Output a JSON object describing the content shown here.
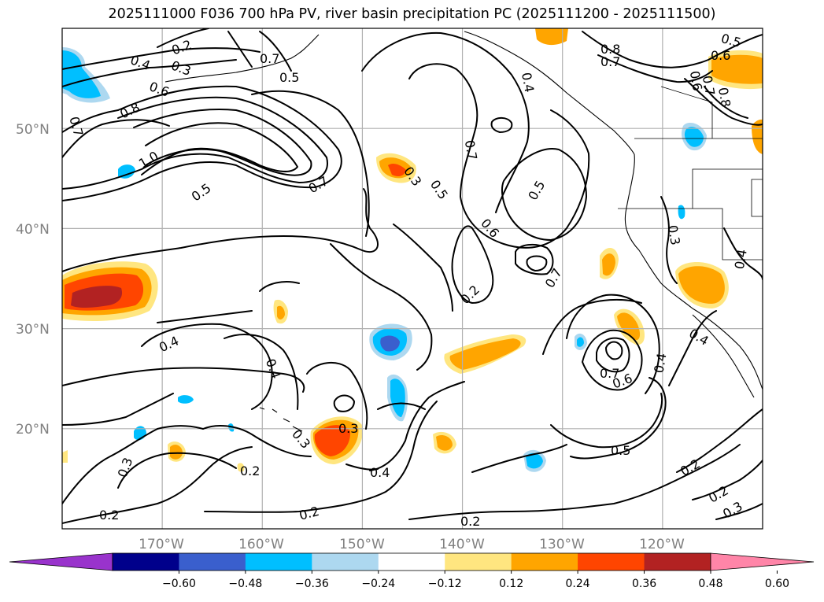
{
  "title": "2025111000 F036 700 hPa PV, river basin precipitation PC (2025111200 - 2025111500)",
  "map": {
    "projection": "lat-lon",
    "lon_range": [
      -180,
      -110
    ],
    "lat_range": [
      10,
      60
    ],
    "lat_gridlines": [
      20,
      30,
      40,
      50
    ],
    "lon_gridlines": [
      -170,
      -160,
      -150,
      -140,
      -130,
      -120
    ],
    "lat_labels": [
      "20°N",
      "30°N",
      "40°N",
      "50°N"
    ],
    "lon_labels": [
      "170°W",
      "160°W",
      "150°W",
      "140°W",
      "130°W",
      "120°W"
    ]
  },
  "colorbar": {
    "ticks": [
      "−0.60",
      "−0.48",
      "−0.36",
      "−0.24",
      "−0.12",
      "0.12",
      "0.24",
      "0.36",
      "0.48",
      "0.60"
    ],
    "colors": [
      "#9933cc",
      "#00008b",
      "#3a5fcd",
      "#00bfff",
      "#add8f0",
      "#ffffff",
      "#ffe680",
      "#ffa500",
      "#ff4500",
      "#b22222",
      "#ff85a8"
    ],
    "extend": "both"
  },
  "contour_labels": [
    "0.2",
    "0.3",
    "0.4",
    "0.5",
    "0.6",
    "0.7",
    "0.8",
    "1.0"
  ],
  "shaded_colors": {
    "pos_low": "#ffe680",
    "pos_mid": "#ffa500",
    "pos_high": "#ff4500",
    "pos_max": "#b22222",
    "neg_low": "#add8f0",
    "neg_mid": "#00bfff",
    "neg_high": "#3a5fcd"
  }
}
